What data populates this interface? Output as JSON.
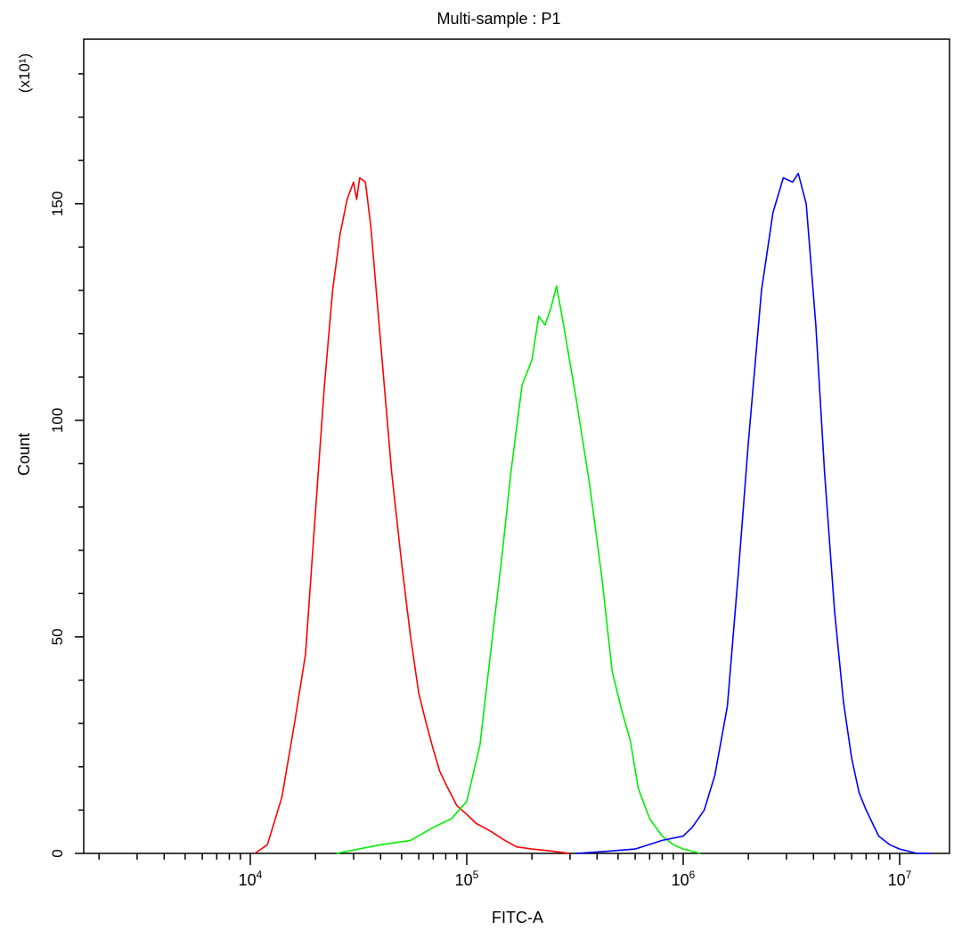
{
  "chart_data": {
    "type": "line",
    "title": "Multi-sample : P1",
    "xlabel": "FITC-A",
    "ylabel": "Count",
    "y_scale_label": "(x10¹)",
    "x_scale": "log",
    "xlim": [
      1700,
      17000000
    ],
    "ylim": [
      0,
      188
    ],
    "grid": false,
    "y_ticks": [
      0,
      50,
      100,
      150
    ],
    "y_tick_labels": [
      "0",
      "50",
      "100",
      "150"
    ],
    "x_ticks": [
      10000,
      100000,
      1000000,
      10000000
    ],
    "x_tick_labels": [
      {
        "base": "10",
        "exp": "4"
      },
      {
        "base": "10",
        "exp": "5"
      },
      {
        "base": "10",
        "exp": "6"
      },
      {
        "base": "10",
        "exp": "7"
      }
    ],
    "series": [
      {
        "color": "#ff0000",
        "x": [
          10500,
          12000,
          14000,
          16000,
          18000,
          20000,
          22000,
          24000,
          26000,
          28000,
          30000,
          31000,
          32000,
          34000,
          36000,
          40000,
          45000,
          50000,
          55000,
          60000,
          65000,
          70000,
          75000,
          80000,
          90000,
          100000,
          110000,
          130000,
          150000,
          170000,
          200000,
          250000,
          300000
        ],
        "y": [
          0,
          2,
          13,
          30,
          46,
          79,
          108,
          130,
          143,
          151,
          155,
          151,
          156,
          155,
          145,
          118,
          88,
          67,
          50,
          37,
          30,
          24,
          19,
          16,
          11,
          9,
          7,
          5,
          3,
          1.5,
          1,
          0.5,
          0
        ]
      },
      {
        "color": "#00ee00",
        "x": [
          25000,
          40000,
          55000,
          70000,
          85000,
          100000,
          115000,
          130000,
          145000,
          160000,
          180000,
          200000,
          215000,
          230000,
          245000,
          260000,
          280000,
          320000,
          370000,
          420000,
          470000,
          520000,
          570000,
          620000,
          700000,
          800000,
          900000,
          1000000,
          1200000
        ],
        "y": [
          0,
          2,
          3,
          6,
          8,
          12,
          25,
          48,
          68,
          88,
          108,
          114,
          124,
          122,
          126,
          131,
          122,
          105,
          85,
          64,
          42,
          33,
          26,
          15,
          8,
          4,
          2,
          1,
          0
        ]
      },
      {
        "color": "#0000ff",
        "x": [
          320000,
          450000,
          600000,
          800000,
          1000000,
          1100000,
          1250000,
          1400000,
          1600000,
          1800000,
          2000000,
          2300000,
          2600000,
          2900000,
          3200000,
          3400000,
          3700000,
          4100000,
          4500000,
          5000000,
          5500000,
          6000000,
          6500000,
          7000000,
          8000000,
          9000000,
          10000000,
          11000000,
          12000000,
          14000000
        ],
        "y": [
          0,
          0.5,
          1,
          3,
          4,
          6,
          10,
          18,
          34,
          65,
          95,
          130,
          148,
          156,
          155,
          157,
          150,
          122,
          88,
          56,
          35,
          22,
          14,
          10,
          4,
          2,
          1,
          0.5,
          0,
          0
        ]
      }
    ]
  }
}
